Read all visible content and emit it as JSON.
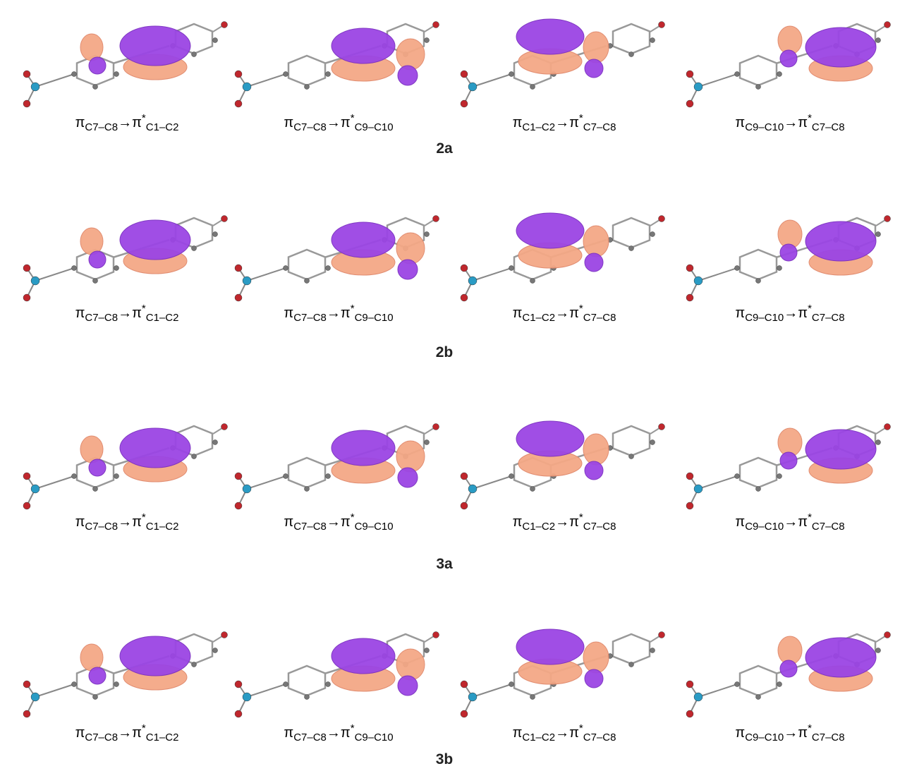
{
  "rows": [
    {
      "label": "2a",
      "panels": [
        {
          "donor": "π",
          "donor_sub": "C7–C8",
          "arrow": "→π",
          "star": "*",
          "acceptor_sub": "C1–C2"
        },
        {
          "donor": "π",
          "donor_sub": "C7–C8",
          "arrow": "→π",
          "star": "*",
          "acceptor_sub": "C9–C10"
        },
        {
          "donor": "π",
          "donor_sub": "C1–C2",
          "arrow": "→π",
          "star": "*",
          "acceptor_sub": "C7–C8"
        },
        {
          "donor": "π",
          "donor_sub": "C9–C10",
          "arrow": "→π",
          "star": "*",
          "acceptor_sub": "C7–C8"
        }
      ]
    },
    {
      "label": "2b",
      "panels": [
        {
          "donor": "π",
          "donor_sub": "C7–C8",
          "arrow": "→π",
          "star": "*",
          "acceptor_sub": "C1–C2"
        },
        {
          "donor": "π",
          "donor_sub": "C7–C8",
          "arrow": "→π",
          "star": "*",
          "acceptor_sub": "C9–C10"
        },
        {
          "donor": "π",
          "donor_sub": "C1–C2",
          "arrow": "→π",
          "star": "*",
          "acceptor_sub": "C7–C8"
        },
        {
          "donor": "π",
          "donor_sub": "C9–C10",
          "arrow": "→π",
          "star": "*",
          "acceptor_sub": "C7–C8"
        }
      ]
    },
    {
      "label": "3a",
      "panels": [
        {
          "donor": "π",
          "donor_sub": "C7–C8",
          "arrow": "→π",
          "star": "*",
          "acceptor_sub": "C1–C2"
        },
        {
          "donor": "π",
          "donor_sub": "C7–C8",
          "arrow": "→π",
          "star": "*",
          "acceptor_sub": "C9–C10"
        },
        {
          "donor": "π",
          "donor_sub": "C1–C2",
          "arrow": "→π",
          "star": "*",
          "acceptor_sub": "C7–C8"
        },
        {
          "donor": "π",
          "donor_sub": "C9–C10",
          "arrow": "→π",
          "star": "*",
          "acceptor_sub": "C7–C8"
        }
      ]
    },
    {
      "label": "3b",
      "panels": [
        {
          "donor": "π",
          "donor_sub": "C7–C8",
          "arrow": "→π",
          "star": "*",
          "acceptor_sub": "C1–C2"
        },
        {
          "donor": "π",
          "donor_sub": "C7–C8",
          "arrow": "→π",
          "star": "*",
          "acceptor_sub": "C9–C10"
        },
        {
          "donor": "π",
          "donor_sub": "C1–C2",
          "arrow": "→π",
          "star": "*",
          "acceptor_sub": "C7–C8"
        },
        {
          "donor": "π",
          "donor_sub": "C9–C10",
          "arrow": "→π",
          "star": "*",
          "acceptor_sub": "C7–C8"
        }
      ]
    }
  ]
}
